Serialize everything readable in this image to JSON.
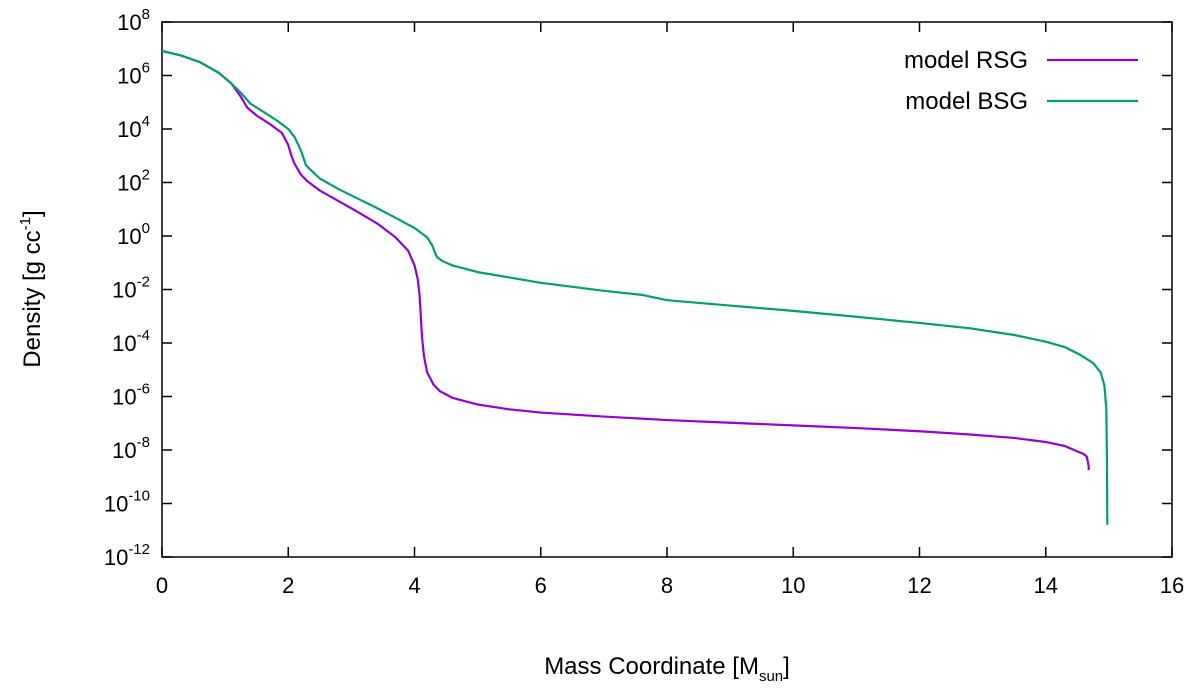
{
  "chart_data": {
    "type": "line",
    "title": "",
    "xlabel": {
      "text": "Mass Coordinate [M",
      "sub": "sun",
      "close": "]"
    },
    "ylabel": {
      "text": "Density [g cc",
      "sup": "-1",
      "close": "]"
    },
    "xlim": [
      0,
      16
    ],
    "ylim_log10": [
      -12,
      8
    ],
    "yscale": "log",
    "grid": false,
    "legend_position": "top-right",
    "x_ticks": [
      {
        "value": 0,
        "label": "0"
      },
      {
        "value": 2,
        "label": "2"
      },
      {
        "value": 4,
        "label": "4"
      },
      {
        "value": 6,
        "label": "6"
      },
      {
        "value": 8,
        "label": "8"
      },
      {
        "value": 10,
        "label": "10"
      },
      {
        "value": 12,
        "label": "12"
      },
      {
        "value": 14,
        "label": "14"
      },
      {
        "value": 16,
        "label": "16"
      }
    ],
    "y_ticks": [
      {
        "exp": 8,
        "base": "10",
        "sup": "8"
      },
      {
        "exp": 6,
        "base": "10",
        "sup": "6"
      },
      {
        "exp": 4,
        "base": "10",
        "sup": "4"
      },
      {
        "exp": 2,
        "base": "10",
        "sup": "2"
      },
      {
        "exp": 0,
        "base": "10",
        "sup": "0"
      },
      {
        "exp": -2,
        "base": "10",
        "sup": "-2"
      },
      {
        "exp": -4,
        "base": "10",
        "sup": "-4"
      },
      {
        "exp": -6,
        "base": "10",
        "sup": "-6"
      },
      {
        "exp": -8,
        "base": "10",
        "sup": "-8"
      },
      {
        "exp": -10,
        "base": "10",
        "sup": "-10"
      },
      {
        "exp": -12,
        "base": "10",
        "sup": "-12"
      }
    ],
    "series": [
      {
        "name": "model RSG",
        "color": "#9400D3",
        "x": [
          0.0,
          0.3,
          0.6,
          0.9,
          1.1,
          1.25,
          1.35,
          1.5,
          1.7,
          1.9,
          2.0,
          2.05,
          2.1,
          2.15,
          2.2,
          2.3,
          2.5,
          2.8,
          3.1,
          3.4,
          3.7,
          3.9,
          4.0,
          4.05,
          4.08,
          4.1,
          4.12,
          4.15,
          4.2,
          4.3,
          4.4,
          4.6,
          5.0,
          5.5,
          6.0,
          7.0,
          8.0,
          9.0,
          10.0,
          11.0,
          12.0,
          12.8,
          13.5,
          14.0,
          14.3,
          14.5,
          14.6,
          14.65,
          14.68,
          14.68
        ],
        "log10_density": [
          6.92,
          6.75,
          6.5,
          6.1,
          5.7,
          5.2,
          4.8,
          4.5,
          4.2,
          3.85,
          3.4,
          3.0,
          2.7,
          2.5,
          2.3,
          2.05,
          1.7,
          1.3,
          0.9,
          0.48,
          -0.05,
          -0.55,
          -1.1,
          -1.6,
          -2.2,
          -3.0,
          -3.8,
          -4.5,
          -5.1,
          -5.55,
          -5.8,
          -6.05,
          -6.3,
          -6.48,
          -6.6,
          -6.75,
          -6.88,
          -6.98,
          -7.08,
          -7.18,
          -7.3,
          -7.42,
          -7.55,
          -7.7,
          -7.85,
          -8.05,
          -8.15,
          -8.25,
          -8.6,
          -8.75
        ]
      },
      {
        "name": "model BSG",
        "color": "#009E73",
        "x": [
          0.0,
          0.3,
          0.6,
          0.9,
          1.1,
          1.25,
          1.4,
          1.6,
          1.8,
          2.0,
          2.1,
          2.2,
          2.28,
          2.32,
          2.5,
          2.8,
          3.1,
          3.4,
          3.7,
          4.0,
          4.2,
          4.28,
          4.32,
          4.36,
          4.45,
          4.6,
          4.8,
          5.0,
          5.5,
          6.0,
          7.0,
          7.6,
          8.0,
          9.0,
          10.0,
          11.0,
          12.0,
          12.8,
          13.5,
          14.0,
          14.3,
          14.55,
          14.75,
          14.87,
          14.93,
          14.96,
          14.97,
          14.975
        ],
        "log10_density": [
          6.92,
          6.75,
          6.5,
          6.1,
          5.7,
          5.35,
          4.95,
          4.65,
          4.35,
          4.0,
          3.7,
          3.2,
          2.65,
          2.55,
          2.15,
          1.75,
          1.4,
          1.05,
          0.68,
          0.3,
          -0.05,
          -0.35,
          -0.6,
          -0.8,
          -0.95,
          -1.1,
          -1.22,
          -1.35,
          -1.55,
          -1.75,
          -2.05,
          -2.2,
          -2.4,
          -2.6,
          -2.8,
          -3.02,
          -3.25,
          -3.45,
          -3.7,
          -3.95,
          -4.15,
          -4.45,
          -4.75,
          -5.1,
          -5.6,
          -6.5,
          -8.5,
          -10.8
        ]
      }
    ]
  }
}
